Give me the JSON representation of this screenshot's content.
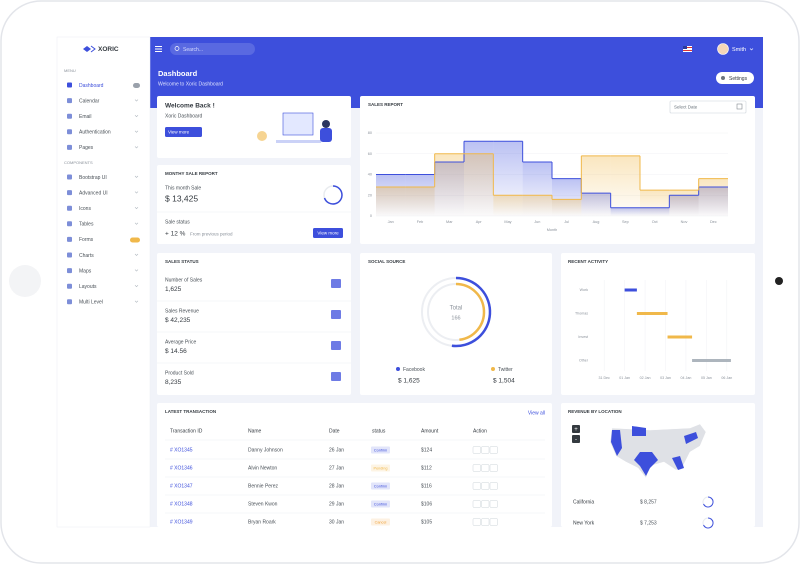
{
  "brand": "XORIC",
  "search_placeholder": "Search...",
  "user": "Smith",
  "page": {
    "title": "Dashboard",
    "subtitle": "Welcome to Xoric Dashboard",
    "settings": "Settings"
  },
  "sidebar": {
    "sections": [
      {
        "title": "MENU",
        "items": [
          "Dashboard",
          "Calendar",
          "Email",
          "Authentication",
          "Pages"
        ]
      },
      {
        "title": "COMPONENTS",
        "items": [
          "Bootstrap UI",
          "Advanced UI",
          "Icons",
          "Tables",
          "Forms",
          "Charts",
          "Maps",
          "Layouts",
          "Multi Level"
        ]
      }
    ]
  },
  "welcome": {
    "title": "Welcome Back !",
    "subtitle": "Xoric Dashboard",
    "button": "View more"
  },
  "monthly": {
    "title": "MONTHY SALE REPORT",
    "label": "This month Sale",
    "value": "$ 13,425",
    "status_label": "Sale status",
    "change": "+ 12 %",
    "change_note": "From previous period",
    "button": "View more"
  },
  "sales_status": {
    "title": "SALES STATUS",
    "items": [
      {
        "label": "Number of Sales",
        "value": "1,625"
      },
      {
        "label": "Sales Revenue",
        "value": "$ 42,235"
      },
      {
        "label": "Average Price",
        "value": "$ 14.56"
      },
      {
        "label": "Product Sold",
        "value": "8,235"
      }
    ]
  },
  "sales_report": {
    "title": "SALES REPORT",
    "date_placeholder": "Select Date",
    "chart_data": {
      "type": "step",
      "x_label": "Month",
      "categories": [
        "Jan",
        "Feb",
        "Mar",
        "Apr",
        "May",
        "Jun",
        "Jul",
        "Aug",
        "Sep",
        "Oct",
        "Nov",
        "Dec"
      ],
      "ylim": [
        0,
        80
      ],
      "yticks": [
        0,
        20,
        40,
        60,
        80
      ],
      "grid": true,
      "series": [
        {
          "color": "#3d4fdc",
          "values": [
            40,
            40,
            52,
            72,
            72,
            52,
            36,
            22,
            8,
            8,
            20,
            28
          ]
        },
        {
          "color": "#f0b84a",
          "values": [
            28,
            28,
            60,
            60,
            20,
            20,
            16,
            58,
            58,
            25,
            25,
            36
          ]
        }
      ]
    }
  },
  "social_source": {
    "title": "SOCIAL SOURCE",
    "total_label": "Total",
    "total": 166,
    "chart_data": {
      "type": "donut",
      "categories": [
        "Facebook",
        "Twitter"
      ],
      "values": [
        1625,
        1504
      ],
      "value_labels": [
        "$ 1,625",
        "$ 1,504"
      ],
      "colors": [
        "#3d4fdc",
        "#f0b84a"
      ]
    }
  },
  "recent_activity": {
    "title": "RECENT ACTIVITY",
    "chart_data": {
      "type": "timeline",
      "categories": [
        "Work",
        "Thomas",
        "Invest",
        "Other"
      ],
      "values": [
        [
          1,
          1.6
        ],
        [
          1.6,
          3.1
        ],
        [
          3.1,
          4.3
        ],
        [
          4.3,
          6.2
        ]
      ],
      "colors": [
        "#3d4fdc",
        "#f0b84a",
        "#f0b84a",
        "#adb5bd"
      ],
      "xlim": [
        -0.4,
        6.4
      ],
      "xticks": [
        {
          "value": 0,
          "label": "31 Dec"
        },
        {
          "value": 1,
          "label": "01 Jan"
        },
        {
          "value": 2,
          "label": "02 Jan"
        },
        {
          "value": 3,
          "label": "03 Jan"
        },
        {
          "value": 4,
          "label": "04 Jan"
        },
        {
          "value": 5,
          "label": "05 Jan"
        },
        {
          "value": 6,
          "label": "06 Jan"
        }
      ]
    }
  },
  "transactions": {
    "title": "LATEST TRANSACTION",
    "view_all": "View all",
    "columns": [
      "Transaction ID",
      "Name",
      "Date",
      "status",
      "Amount",
      "Action"
    ],
    "rows": [
      [
        "# XO1345",
        "Danny Johnson",
        "26 Jan",
        "Confirm",
        "$124"
      ],
      [
        "# XO1346",
        "Alvin Newton",
        "27 Jan",
        "Pending",
        "$112"
      ],
      [
        "# XO1347",
        "Bennie Perez",
        "28 Jan",
        "Confirm",
        "$116"
      ],
      [
        "# XO1348",
        "Steven Kwon",
        "29 Jan",
        "Confirm",
        "$106"
      ],
      [
        "# XO1349",
        "Bryan Roark",
        "30 Jan",
        "Cancel",
        "$105"
      ]
    ],
    "status_colors": [
      "#3d4fdc",
      "#f0b84a",
      "#3d4fdc",
      "#3d4fdc",
      "#f0a33a"
    ]
  },
  "revenue_by_location": {
    "title": "REVENUE BY LOCATION",
    "zoom": [
      "+",
      "-"
    ],
    "items": [
      {
        "name": "California",
        "value": "$ 8,257"
      },
      {
        "name": "New York",
        "value": "$ 7,253"
      }
    ]
  }
}
